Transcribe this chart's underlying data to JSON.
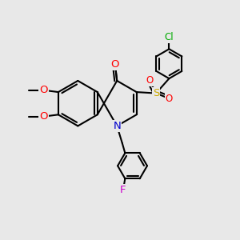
{
  "bg_color": "#e8e8e8",
  "bond_color": "#000000",
  "bond_width": 1.5,
  "atom_colors": {
    "O": "#ff0000",
    "N": "#0000cd",
    "S": "#ccaa00",
    "Cl": "#00aa00",
    "F": "#cc00cc",
    "C": "#000000"
  },
  "font_size": 8.5,
  "figsize": [
    3.0,
    3.0
  ],
  "dpi": 100,
  "xlim": [
    0,
    10
  ],
  "ylim": [
    0,
    10
  ]
}
